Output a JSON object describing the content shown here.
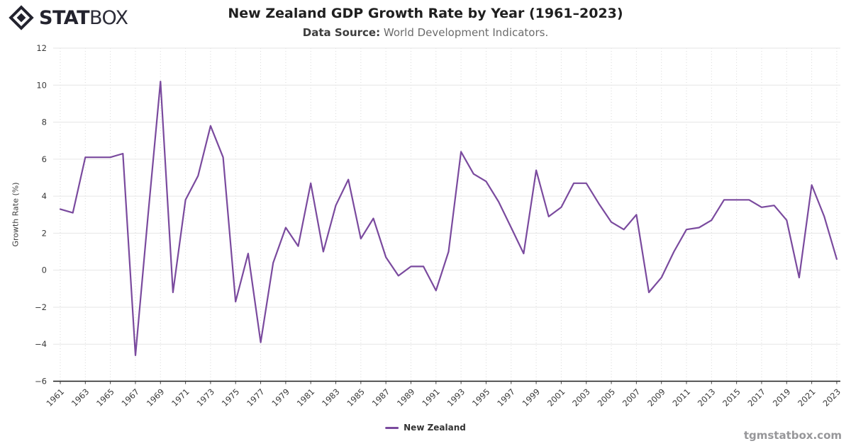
{
  "brand": {
    "icon": "statbox-diamond-logo-icon",
    "name_bold": "STAT",
    "name_light": "BOX"
  },
  "header": {
    "title": "New Zealand GDP Growth Rate by Year (1961–2023)",
    "data_source_label": "Data Source:",
    "data_source_value": " World Development Indicators."
  },
  "footer": {
    "watermark": "tgmstatbox.com"
  },
  "colors": {
    "line": "#7a4a9e",
    "h_gridline": "#e6e6e6",
    "v_gridline": "#d9d9d9",
    "axis_line": "#1a1a1a",
    "tick_label": "#3a3a3a"
  },
  "chart_data": {
    "type": "line",
    "title": "New Zealand GDP Growth Rate by Year (1961–2023)",
    "subtitle": "Data Source: World Development Indicators.",
    "xlabel": "",
    "ylabel": "Growth Rate (%)",
    "ylim": [
      -6,
      12
    ],
    "yticks": [
      -6,
      -4,
      -2,
      0,
      2,
      4,
      6,
      8,
      10,
      12
    ],
    "xticks": [
      1961,
      1963,
      1965,
      1967,
      1969,
      1971,
      1973,
      1975,
      1977,
      1979,
      1981,
      1983,
      1985,
      1987,
      1989,
      1991,
      1993,
      1995,
      1997,
      1999,
      2001,
      2003,
      2005,
      2007,
      2009,
      2011,
      2013,
      2015,
      2017,
      2019,
      2021,
      2023
    ],
    "grid": true,
    "legend_position": "bottom",
    "x": [
      1961,
      1962,
      1963,
      1964,
      1965,
      1966,
      1967,
      1968,
      1969,
      1970,
      1971,
      1972,
      1973,
      1974,
      1975,
      1976,
      1977,
      1978,
      1979,
      1980,
      1981,
      1982,
      1983,
      1984,
      1985,
      1986,
      1987,
      1988,
      1989,
      1990,
      1991,
      1992,
      1993,
      1994,
      1995,
      1996,
      1997,
      1998,
      1999,
      2000,
      2001,
      2002,
      2003,
      2004,
      2005,
      2006,
      2007,
      2008,
      2009,
      2010,
      2011,
      2012,
      2013,
      2014,
      2015,
      2016,
      2017,
      2018,
      2019,
      2020,
      2021,
      2022,
      2023
    ],
    "series": [
      {
        "name": "New Zealand",
        "color": "#7a4a9e",
        "values": [
          3.3,
          3.1,
          6.1,
          6.1,
          6.1,
          6.3,
          -4.6,
          2.9,
          10.2,
          -1.2,
          3.8,
          5.1,
          7.8,
          6.1,
          -1.7,
          0.9,
          -3.9,
          0.4,
          2.3,
          1.3,
          4.7,
          1.0,
          3.5,
          4.9,
          1.7,
          2.8,
          0.7,
          -0.3,
          0.2,
          0.2,
          -1.1,
          1.0,
          6.4,
          5.2,
          4.8,
          3.7,
          2.3,
          0.9,
          5.4,
          2.9,
          3.4,
          4.7,
          4.7,
          3.6,
          2.6,
          2.2,
          3.0,
          -1.2,
          -0.4,
          1.0,
          2.2,
          2.3,
          2.7,
          3.8,
          3.8,
          3.8,
          3.4,
          3.5,
          2.7,
          -0.4,
          4.6,
          2.9,
          0.6
        ]
      }
    ]
  }
}
